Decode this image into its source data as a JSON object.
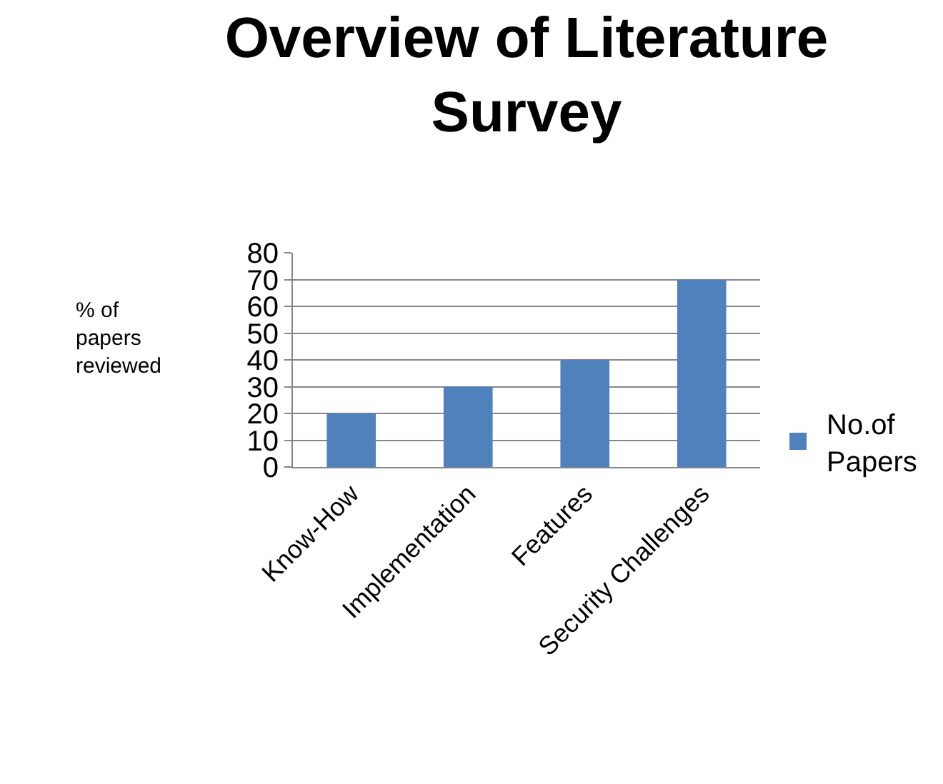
{
  "chart_data": {
    "type": "bar",
    "title": "Overview of Literature Survey",
    "ylabel": "% of papers reviewed",
    "categories": [
      "Know-How",
      "Implementation",
      "Features",
      "Security Challenges"
    ],
    "series": [
      {
        "name": "No.of Papers",
        "color": "#4f81bd",
        "values": [
          20,
          30,
          40,
          70
        ]
      }
    ],
    "ylim": [
      0,
      80
    ],
    "yticks": [
      0,
      10,
      20,
      30,
      40,
      50,
      60,
      70,
      80
    ],
    "grid": "y",
    "legend": "right"
  }
}
